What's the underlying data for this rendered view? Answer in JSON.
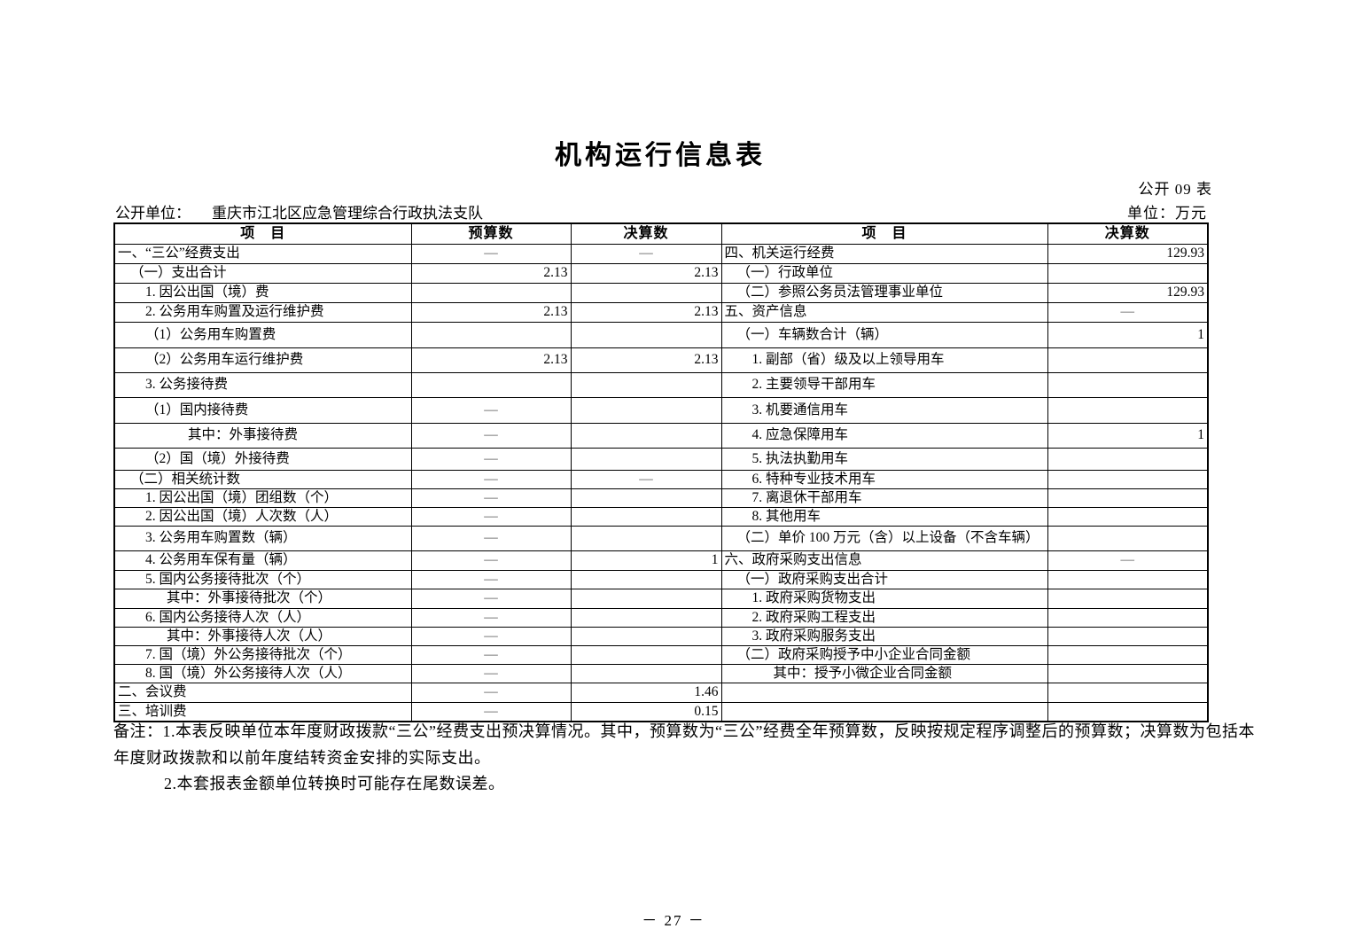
{
  "title": "机构运行信息表",
  "form_number": "公开 09 表",
  "unit_label": "单位：万元",
  "publish_unit_label": "公开单位：",
  "publish_unit_value": "重庆市江北区应急管理综合行政执法支队",
  "page_number": "－ 27 －",
  "table": {
    "headers": [
      "项　目",
      "预算数",
      "决算数",
      "项　目",
      "决算数"
    ],
    "rows": [
      {
        "left": "一、“三公”经费支出",
        "li": 0,
        "budget": "—",
        "final": "—",
        "right": "四、机关运行经费",
        "ri": 0,
        "rfinal": "129.93"
      },
      {
        "left": "（一）支出合计",
        "li": 1,
        "budget": "2.13",
        "final": "2.13",
        "right": "（一）行政单位",
        "ri": 1,
        "rfinal": ""
      },
      {
        "left": "1. 因公出国（境）费",
        "li": 2,
        "budget": "",
        "final": "",
        "right": "（二）参照公务员法管理事业单位",
        "ri": 1,
        "rfinal": "129.93"
      },
      {
        "left": "2. 公务用车购置及运行维护费",
        "li": 2,
        "budget": "2.13",
        "final": "2.13",
        "right": "五、资产信息",
        "ri": 0,
        "rfinal": "—"
      },
      {
        "left": "（1）公务用车购置费",
        "li": 2,
        "budget": "",
        "final": "",
        "right": "（一）车辆数合计（辆）",
        "ri": 1,
        "rfinal": "1"
      },
      {
        "left": "（2）公务用车运行维护费",
        "li": 2,
        "budget": "2.13",
        "final": "2.13",
        "right": "1. 副部（省）级及以上领导用车",
        "ri": 2,
        "rfinal": ""
      },
      {
        "left": "3. 公务接待费",
        "li": 2,
        "budget": "",
        "final": "",
        "right": "2. 主要领导干部用车",
        "ri": 2,
        "rfinal": ""
      },
      {
        "left": "（1）国内接待费",
        "li": 2,
        "budget": "—",
        "final": "",
        "right": "3. 机要通信用车",
        "ri": 2,
        "rfinal": ""
      },
      {
        "left": "其中：外事接待费",
        "li": 4,
        "budget": "—",
        "final": "",
        "right": "4. 应急保障用车",
        "ri": 2,
        "rfinal": "1"
      },
      {
        "left": "（2）国（境）外接待费",
        "li": 2,
        "budget": "—",
        "final": "",
        "right": "5. 执法执勤用车",
        "ri": 2,
        "rfinal": ""
      },
      {
        "left": "（二）相关统计数",
        "li": 1,
        "budget": "—",
        "final": "—",
        "right": "6. 特种专业技术用车",
        "ri": 2,
        "rfinal": ""
      },
      {
        "left": "1. 因公出国（境）团组数（个）",
        "li": 2,
        "budget": "—",
        "final": "",
        "right": "7. 离退休干部用车",
        "ri": 2,
        "rfinal": ""
      },
      {
        "left": "2. 因公出国（境）人次数（人）",
        "li": 2,
        "budget": "—",
        "final": "",
        "right": "8. 其他用车",
        "ri": 2,
        "rfinal": ""
      },
      {
        "left": "3. 公务用车购置数（辆）",
        "li": 2,
        "budget": "—",
        "final": "",
        "right": "（二）单价 100 万元（含）以上设备（不含车辆）",
        "ri": 1,
        "rfinal": ""
      },
      {
        "left": "4. 公务用车保有量（辆）",
        "li": 2,
        "budget": "—",
        "final": "1",
        "right": "六、政府采购支出信息",
        "ri": 0,
        "rfinal": "—"
      },
      {
        "left": "5. 国内公务接待批次（个）",
        "li": 2,
        "budget": "—",
        "final": "",
        "right": "（一）政府采购支出合计",
        "ri": 1,
        "rfinal": ""
      },
      {
        "left": "其中：外事接待批次（个）",
        "li": 3,
        "budget": "—",
        "final": "",
        "right": "1. 政府采购货物支出",
        "ri": 2,
        "rfinal": ""
      },
      {
        "left": "6. 国内公务接待人次（人）",
        "li": 2,
        "budget": "—",
        "final": "",
        "right": "2. 政府采购工程支出",
        "ri": 2,
        "rfinal": ""
      },
      {
        "left": "其中：外事接待人次（人）",
        "li": 3,
        "budget": "—",
        "final": "",
        "right": "3. 政府采购服务支出",
        "ri": 2,
        "rfinal": ""
      },
      {
        "left": "7. 国（境）外公务接待批次（个）",
        "li": 2,
        "budget": "—",
        "final": "",
        "right": "（二）政府采购授予中小企业合同金额",
        "ri": 1,
        "rfinal": ""
      },
      {
        "left": "8. 国（境）外公务接待人次（人）",
        "li": 2,
        "budget": "—",
        "final": "",
        "right": "其中：授予小微企业合同金额",
        "ri": 3,
        "rfinal": ""
      },
      {
        "left": "二、会议费",
        "li": 0,
        "budget": "—",
        "final": "1.46",
        "right": "",
        "ri": 0,
        "rfinal": ""
      },
      {
        "left": "三、培训费",
        "li": 0,
        "budget": "—",
        "final": "0.15",
        "right": "",
        "ri": 0,
        "rfinal": ""
      }
    ]
  },
  "notes": {
    "lines": [
      "备注：1.本表反映单位本年度财政拨款“三公”经费支出预决算情况。其中，预算数为“三公”经费全年预算数，反映按规定程序调整后的预算数；决算数为包括本",
      "年度财政拨款和以前年度结转资金安排的实际支出。",
      "2.本套报表金额单位转换时可能存在尾数误差。"
    ]
  }
}
